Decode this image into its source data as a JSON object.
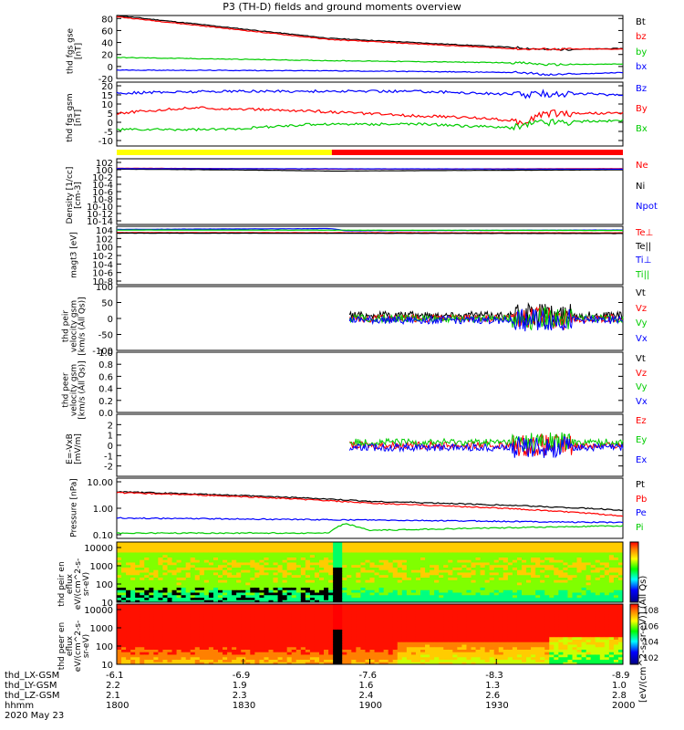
{
  "title": "P3 (TH-D) fields and ground moments overview",
  "colors": {
    "black": "#000000",
    "red": "#ff0000",
    "green": "#00cc00",
    "blue": "#0000ff",
    "yellow": "#ffff00"
  },
  "chart_data": [
    {
      "type": "line",
      "ylabel": "thd fgs gse [nT]",
      "ylim": [
        -20,
        85
      ],
      "yticks": [
        -20,
        0,
        20,
        40,
        60,
        80
      ],
      "series": [
        {
          "name": "Bt",
          "color": "black",
          "points": [
            [
              0,
              85
            ],
            [
              0.42,
              47
            ],
            [
              0.8,
              31
            ],
            [
              0.85,
              28
            ],
            [
              1,
              30
            ]
          ]
        },
        {
          "name": "bz",
          "color": "red",
          "points": [
            [
              0,
              83
            ],
            [
              0.42,
              45
            ],
            [
              0.8,
              29
            ],
            [
              1,
              29
            ]
          ]
        },
        {
          "name": "by",
          "color": "green",
          "points": [
            [
              0,
              15
            ],
            [
              0.4,
              10
            ],
            [
              0.8,
              6
            ],
            [
              0.85,
              3
            ],
            [
              1,
              4
            ]
          ]
        },
        {
          "name": "bx",
          "color": "blue",
          "points": [
            [
              0,
              -6
            ],
            [
              0.4,
              -7
            ],
            [
              0.8,
              -10
            ],
            [
              0.85,
              -14
            ],
            [
              1,
              -10
            ]
          ]
        }
      ]
    },
    {
      "type": "line",
      "ylabel": "thd fgs gsm [nT]",
      "ylim": [
        -13,
        22
      ],
      "yticks": [
        -10,
        -5,
        0,
        5,
        10,
        15,
        20
      ],
      "series": [
        {
          "name": "Bz",
          "color": "blue",
          "points": [
            [
              0,
              16
            ],
            [
              0.2,
              17
            ],
            [
              0.4,
              17
            ],
            [
              0.6,
              17
            ],
            [
              0.82,
              15
            ],
            [
              0.86,
              16
            ],
            [
              1,
              15
            ]
          ]
        },
        {
          "name": "By",
          "color": "red",
          "points": [
            [
              0,
              5
            ],
            [
              0.15,
              8
            ],
            [
              0.4,
              6
            ],
            [
              0.55,
              4
            ],
            [
              0.75,
              2
            ],
            [
              0.8,
              -1
            ],
            [
              0.84,
              5
            ],
            [
              1,
              5
            ]
          ]
        },
        {
          "name": "Bx",
          "color": "green",
          "points": [
            [
              0,
              -4
            ],
            [
              0.2,
              -4
            ],
            [
              0.4,
              -1
            ],
            [
              0.6,
              -1
            ],
            [
              0.78,
              -3
            ],
            [
              0.83,
              0
            ],
            [
              1,
              1
            ]
          ]
        }
      ]
    },
    {
      "type": "line",
      "ylabel": "Density [1/cc] [cm-3]",
      "ylim": [
        1e-14,
        100
      ],
      "log": true,
      "ytick_labels": [
        "10-14",
        "10-12",
        "10-10",
        "10-8",
        "10-6",
        "10-4",
        "10-2",
        "100",
        "102"
      ],
      "series": [
        {
          "name": "Ne",
          "color": "red",
          "points": [
            [
              0,
              0.5
            ],
            [
              0.42,
              0.3
            ],
            [
              1,
              0.4
            ]
          ]
        },
        {
          "name": "Ni",
          "color": "black",
          "points": [
            [
              0,
              0.3
            ],
            [
              0.42,
              0.1
            ],
            [
              1,
              0.2
            ]
          ]
        },
        {
          "name": "Npot",
          "color": "blue",
          "points": [
            [
              0,
              0.4
            ],
            [
              1,
              0.3
            ]
          ]
        }
      ]
    },
    {
      "type": "line",
      "ylabel": "magt3 [eV]",
      "ylim": [
        1e-09,
        10000.0
      ],
      "log": true,
      "ytick_labels": [
        "10-8",
        "10-6",
        "10-4",
        "10-2",
        "100",
        "102",
        "104"
      ],
      "series": [
        {
          "name": "Te⊥",
          "color": "red",
          "points": [
            [
              0,
              400
            ],
            [
              1,
              350
            ]
          ]
        },
        {
          "name": "Te||",
          "color": "black",
          "points": [
            [
              0,
              300
            ],
            [
              1,
              250
            ]
          ]
        },
        {
          "name": "Ti⊥",
          "color": "blue",
          "points": [
            [
              0,
              2000
            ],
            [
              0.42,
              3000
            ],
            [
              0.45,
              1000
            ],
            [
              1,
              1500
            ]
          ]
        },
        {
          "name": "Ti||",
          "color": "green",
          "points": [
            [
              0,
              1500
            ],
            [
              1,
              1200
            ]
          ]
        }
      ]
    },
    {
      "type": "line",
      "ylabel": "thd peir velocity gsm [km/s (All Qs)]",
      "ylim": [
        -100,
        100
      ],
      "yticks": [
        -100,
        -50,
        0,
        50,
        100
      ],
      "series": [
        {
          "name": "Vt",
          "color": "black",
          "points": [
            [
              0.46,
              10
            ],
            [
              1,
              10
            ]
          ]
        },
        {
          "name": "Vz",
          "color": "red",
          "points": [
            [
              0.46,
              0
            ],
            [
              1,
              0
            ]
          ]
        },
        {
          "name": "Vy",
          "color": "green",
          "points": [
            [
              0.46,
              0
            ],
            [
              1,
              0
            ]
          ]
        },
        {
          "name": "Vx",
          "color": "blue",
          "points": [
            [
              0.46,
              -5
            ],
            [
              1,
              -5
            ]
          ]
        }
      ]
    },
    {
      "type": "line",
      "ylabel": "thd peer velocity gsm [km/s (All Qs)]",
      "ylim": [
        0,
        1
      ],
      "yticks": [
        0,
        0.2,
        0.4,
        0.6,
        0.8,
        1.0
      ],
      "series": [
        {
          "name": "Vt",
          "color": "black",
          "points": []
        },
        {
          "name": "Vz",
          "color": "red",
          "points": []
        },
        {
          "name": "Vy",
          "color": "green",
          "points": []
        },
        {
          "name": "Vx",
          "color": "blue",
          "points": []
        }
      ]
    },
    {
      "type": "line",
      "ylabel": "E=-VxB [mV/m]",
      "ylim": [
        -3,
        3
      ],
      "yticks": [
        -2,
        -1,
        0,
        1,
        2
      ],
      "series": [
        {
          "name": "Ez",
          "color": "red",
          "points": [
            [
              0.46,
              0
            ],
            [
              1,
              0
            ]
          ]
        },
        {
          "name": "Ey",
          "color": "green",
          "points": [
            [
              0.46,
              0.3
            ],
            [
              1,
              0.3
            ]
          ]
        },
        {
          "name": "Ex",
          "color": "blue",
          "points": [
            [
              0.46,
              -0.2
            ],
            [
              1,
              -0.2
            ]
          ]
        }
      ]
    },
    {
      "type": "line",
      "ylabel": "Pressure [nPa]",
      "ylim": [
        0.05,
        10
      ],
      "log": true,
      "ytick_labels": [
        "0.10",
        "1.00",
        "10.00"
      ],
      "series": [
        {
          "name": "Pt",
          "color": "black",
          "points": [
            [
              0,
              3
            ],
            [
              0.5,
              1.3
            ],
            [
              1,
              0.6
            ]
          ]
        },
        {
          "name": "Pb",
          "color": "red",
          "points": [
            [
              0,
              2.8
            ],
            [
              0.5,
              1.1
            ],
            [
              1,
              0.35
            ]
          ]
        },
        {
          "name": "Pe",
          "color": "blue",
          "points": [
            [
              0,
              0.3
            ],
            [
              1,
              0.2
            ]
          ]
        },
        {
          "name": "Pi",
          "color": "green",
          "points": [
            [
              0,
              0.08
            ],
            [
              0.42,
              0.08
            ],
            [
              0.45,
              0.18
            ],
            [
              0.5,
              0.1
            ],
            [
              1,
              0.15
            ]
          ]
        }
      ]
    },
    {
      "type": "heatmap",
      "ylabel": "thd peir en eflux eV/(cm^2-s-sr-eV)",
      "ylim": [
        10,
        20000
      ],
      "log": true,
      "ytick_labels": [
        "10",
        "100",
        "1000",
        "10000"
      ]
    },
    {
      "type": "heatmap",
      "ylabel": "thd peer en eflux eV/(cm^2-s-sr-eV)",
      "ylim": [
        10,
        20000
      ],
      "log": true,
      "ytick_labels": [
        "10",
        "100",
        "1000",
        "10000"
      ],
      "colorbar_ticks": [
        "102",
        "104",
        "106",
        "108"
      ]
    }
  ],
  "x_axis": {
    "rows": [
      {
        "label": "thd_LX-GSM",
        "values": [
          "-6.1",
          "-6.9",
          "-7.6",
          "-8.3",
          "-8.9"
        ]
      },
      {
        "label": "thd_LY-GSM",
        "values": [
          "2.2",
          "1.9",
          "1.6",
          "1.3",
          "1.0"
        ]
      },
      {
        "label": "thd_LZ-GSM",
        "values": [
          "2.1",
          "2.3",
          "2.4",
          "2.6",
          "2.8"
        ]
      },
      {
        "label": "hhmm",
        "values": [
          "1800",
          "1830",
          "1900",
          "1930",
          "2000"
        ]
      }
    ],
    "date": "2020 May 23"
  },
  "legends": [
    [
      "Bt",
      "bz",
      "by",
      "bx"
    ],
    [
      "Bz",
      "By",
      "Bx"
    ],
    [
      "Ne",
      "Ni",
      "Npot"
    ],
    [
      "Te⊥",
      "Te||",
      "Ti⊥",
      "Ti||"
    ],
    [
      "Vt",
      "Vz",
      "Vy",
      "Vx"
    ],
    [
      "Vt",
      "Vz",
      "Vy",
      "Vx"
    ],
    [
      "Ez",
      "Ey",
      "Ex"
    ],
    [
      "Pt",
      "Pb",
      "Pe",
      "Pi"
    ]
  ],
  "panel_labels": [
    "thd fgs gse [nT]",
    "thd fgs gsm [nT]",
    "Density [1/cc] [cm-3]",
    "magt3 [eV]",
    "thd peir velocity gsm [km/s (All Qs)]",
    "thd peer velocity gsm [km/s (All Qs)]",
    "E=-VxB [mV/m]",
    "Pressure [nPa]",
    "thd peir en eflux eV/(cm^2-s-sr-eV)",
    "thd peer en eflux eV/(cm^2-s-sr-eV)"
  ],
  "colorbar_label": "[eV/(cm^2-s-sr-eV)] (All Qs)"
}
